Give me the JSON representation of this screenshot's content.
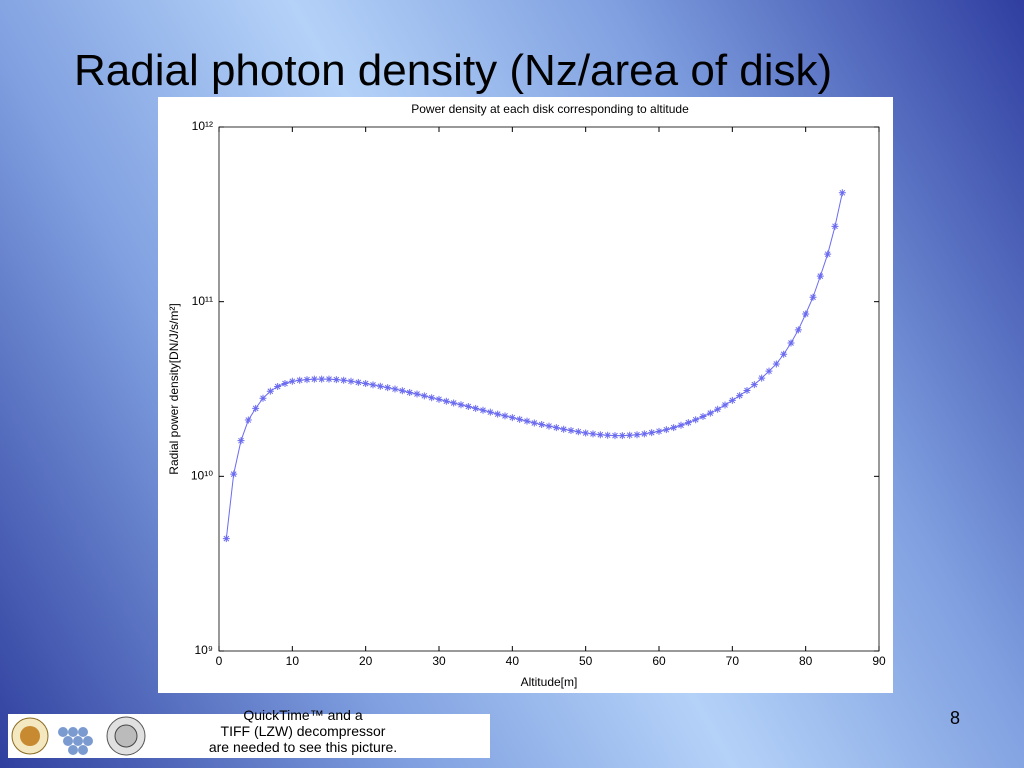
{
  "slide": {
    "title": "Radial photon density (Nz/area of disk)",
    "page_number": "8",
    "placeholder_text": [
      "QuickTime™ and a",
      "TIFF (LZW) decompressor",
      "are needed to see this picture."
    ]
  },
  "chart_data": {
    "type": "line",
    "title": "Power density at each disk corresponding to altitude",
    "x_label": "Altitude[m]",
    "y_label": "Radial power density[DN/J/s/m²]",
    "x": [
      1,
      2,
      3,
      4,
      5,
      6,
      7,
      8,
      9,
      10,
      11,
      12,
      13,
      14,
      15,
      16,
      17,
      18,
      19,
      20,
      21,
      22,
      23,
      24,
      25,
      26,
      27,
      28,
      29,
      30,
      31,
      32,
      33,
      34,
      35,
      36,
      37,
      38,
      39,
      40,
      41,
      42,
      43,
      44,
      45,
      46,
      47,
      48,
      49,
      50,
      51,
      52,
      53,
      54,
      55,
      56,
      57,
      58,
      59,
      60,
      61,
      62,
      63,
      64,
      65,
      66,
      67,
      68,
      69,
      70,
      71,
      72,
      73,
      74,
      75,
      76,
      77,
      78,
      79,
      80,
      81,
      82,
      83,
      84,
      85
    ],
    "values": [
      4400000000.0,
      10300000000.0,
      16000000000.0,
      21000000000.0,
      24500000000.0,
      28000000000.0,
      30700000000.0,
      32700000000.0,
      34000000000.0,
      35000000000.0,
      35500000000.0,
      35800000000.0,
      36000000000.0,
      36000000000.0,
      36000000000.0,
      35800000000.0,
      35500000000.0,
      35000000000.0,
      34500000000.0,
      34000000000.0,
      33400000000.0,
      32800000000.0,
      32200000000.0,
      31600000000.0,
      30900000000.0,
      30200000000.0,
      29600000000.0,
      28900000000.0,
      28200000000.0,
      27600000000.0,
      26900000000.0,
      26300000000.0,
      25700000000.0,
      25100000000.0,
      24500000000.0,
      23900000000.0,
      23300000000.0,
      22700000000.0,
      22200000000.0,
      21700000000.0,
      21200000000.0,
      20700000000.0,
      20200000000.0,
      19800000000.0,
      19400000000.0,
      19000000000.0,
      18600000000.0,
      18300000000.0,
      18000000000.0,
      17700000000.0,
      17500000000.0,
      17300000000.0,
      17200000000.0,
      17100000000.0,
      17100000000.0,
      17200000000.0,
      17300000000.0,
      17500000000.0,
      17800000000.0,
      18100000000.0,
      18500000000.0,
      19000000000.0,
      19600000000.0,
      20300000000.0,
      21100000000.0,
      22000000000.0,
      23000000000.0,
      24200000000.0,
      25600000000.0,
      27200000000.0,
      29000000000.0,
      31000000000.0,
      33500000000.0,
      36500000000.0,
      40000000000.0,
      44000000000.0,
      50000000000.0,
      58000000000.0,
      69000000000.0,
      85000000000.0,
      106000000000.0,
      140000000000.0,
      187000000000.0,
      270000000000.0,
      420000000000.0
    ],
    "color": "#6b6bf0",
    "marker": "asterisk",
    "xlim": [
      0,
      90
    ],
    "xticks": [
      0,
      10,
      20,
      30,
      40,
      50,
      60,
      70,
      80,
      90
    ],
    "ylim": [
      1000000000.0,
      1000000000000.0
    ],
    "yscale": "log",
    "yticks": [
      {
        "value": 1000000000.0,
        "label": "10⁹"
      },
      {
        "value": 10000000000.0,
        "label": "10¹⁰"
      },
      {
        "value": 100000000000.0,
        "label": "10¹¹"
      },
      {
        "value": 1000000000000.0,
        "label": "10¹²"
      }
    ],
    "grid": false
  }
}
